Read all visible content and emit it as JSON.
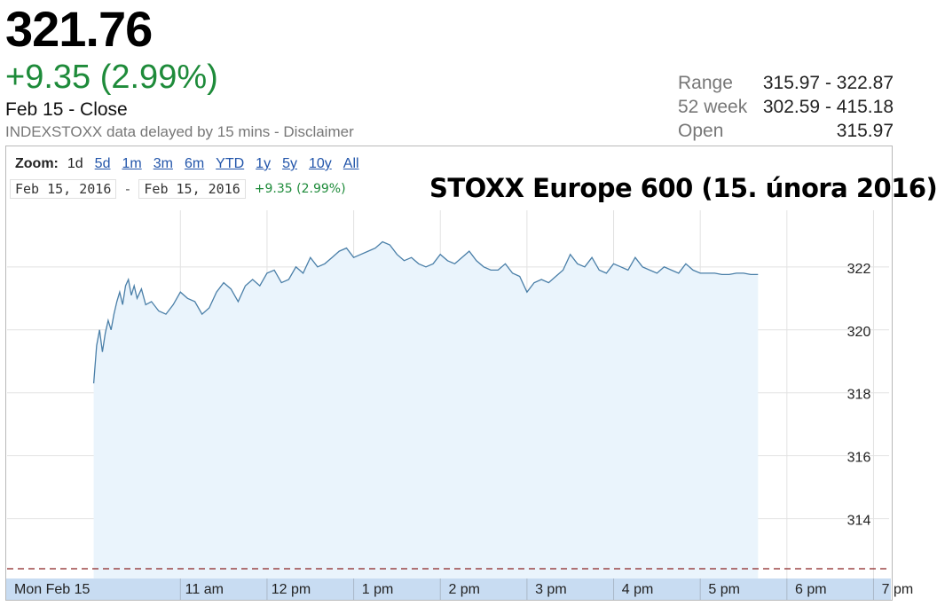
{
  "quote": {
    "price": "321.76",
    "change": "+9.35 (2.99%)",
    "close_label": "Feb 15 - Close",
    "source_prefix": "INDEXSTOXX data delayed by 15 mins - ",
    "disclaimer_link": "Disclaimer",
    "up_color": "#1e8b3a"
  },
  "stats": [
    {
      "label": "Range",
      "value": "315.97 - 322.87"
    },
    {
      "label": "52 week",
      "value": "302.59 - 415.18"
    },
    {
      "label": "Open",
      "value": "315.97"
    }
  ],
  "zoom": {
    "label": "Zoom:",
    "options": [
      "1d",
      "5d",
      "1m",
      "3m",
      "6m",
      "YTD",
      "1y",
      "5y",
      "10y",
      "All"
    ],
    "active": "1d"
  },
  "date_range": {
    "start": "Feb 15, 2016",
    "separator": "-",
    "end": "Feb 15, 2016",
    "change": "+9.35 (2.99%)"
  },
  "overlay_title": "STOXX Europe 600 (15. února 2016)",
  "chart_data": {
    "type": "area",
    "x_tick_labels": [
      "Mon Feb 15",
      "11 am",
      "12 pm",
      "1 pm",
      "2 pm",
      "3 pm",
      "4 pm",
      "5 pm",
      "6 pm",
      "7 pm"
    ],
    "y_ticks": [
      314,
      316,
      318,
      320,
      322
    ],
    "ylim": [
      312.1,
      323.8
    ],
    "previous_close": 312.41,
    "grid": true,
    "line_color": "#4a7fa8",
    "fill_color": "#eaf4fc",
    "series": [
      {
        "x": [
          "10:00",
          "10:02",
          "10:04",
          "10:06",
          "10:08",
          "10:10",
          "10:12",
          "10:14",
          "10:16",
          "10:18",
          "10:20",
          "10:22",
          "10:24",
          "10:26",
          "10:28",
          "10:30",
          "10:33",
          "10:36",
          "10:40",
          "10:45",
          "10:50",
          "10:55",
          "11:00",
          "11:05",
          "11:10",
          "11:15",
          "11:20",
          "11:25",
          "11:30",
          "11:35",
          "11:40",
          "11:45",
          "11:50",
          "11:55",
          "12:00",
          "12:05",
          "12:10",
          "12:15",
          "12:20",
          "12:25",
          "12:30",
          "12:35",
          "12:40",
          "12:45",
          "12:50",
          "12:55",
          "13:00",
          "13:05",
          "13:10",
          "13:15",
          "13:20",
          "13:25",
          "13:30",
          "13:35",
          "13:40",
          "13:45",
          "13:50",
          "13:55",
          "14:00",
          "14:05",
          "14:10",
          "14:15",
          "14:20",
          "14:25",
          "14:30",
          "14:35",
          "14:40",
          "14:45",
          "14:50",
          "14:55",
          "15:00",
          "15:05",
          "15:10",
          "15:15",
          "15:20",
          "15:25",
          "15:30",
          "15:35",
          "15:40",
          "15:45",
          "15:50",
          "15:55",
          "16:00",
          "16:05",
          "16:10",
          "16:15",
          "16:20",
          "16:25",
          "16:30",
          "16:35",
          "16:40",
          "16:45",
          "16:50",
          "16:55",
          "17:00",
          "17:05",
          "17:10",
          "17:15",
          "17:20",
          "17:25",
          "17:30",
          "17:35",
          "17:40"
        ],
        "y": [
          318.3,
          319.5,
          320.0,
          319.3,
          319.9,
          320.3,
          320.0,
          320.5,
          320.9,
          321.2,
          320.8,
          321.4,
          321.6,
          321.1,
          321.4,
          321.0,
          321.3,
          320.8,
          320.9,
          320.6,
          320.5,
          320.8,
          321.2,
          321.0,
          320.9,
          320.5,
          320.7,
          321.2,
          321.5,
          321.3,
          320.9,
          321.4,
          321.6,
          321.4,
          321.8,
          321.9,
          321.5,
          321.6,
          322.0,
          321.8,
          322.3,
          322.0,
          322.1,
          322.3,
          322.5,
          322.6,
          322.3,
          322.4,
          322.5,
          322.6,
          322.8,
          322.7,
          322.4,
          322.2,
          322.3,
          322.1,
          322.0,
          322.1,
          322.4,
          322.2,
          322.1,
          322.3,
          322.5,
          322.2,
          322.0,
          321.9,
          321.9,
          322.1,
          321.8,
          321.7,
          321.2,
          321.5,
          321.6,
          321.5,
          321.7,
          321.9,
          322.4,
          322.1,
          322.0,
          322.3,
          321.9,
          321.8,
          322.1,
          322.0,
          321.9,
          322.3,
          322.0,
          321.9,
          321.8,
          322.0,
          321.9,
          321.8,
          322.1,
          321.9,
          321.8,
          321.8,
          321.8,
          321.76,
          321.76,
          321.8,
          321.8,
          321.76,
          321.76
        ]
      }
    ]
  }
}
